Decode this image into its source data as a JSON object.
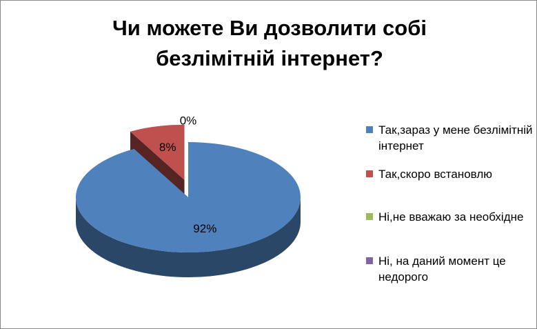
{
  "chart_data": {
    "type": "pie3d",
    "title": "Чи можете Ви дозволити собі безлімітній інтернет?",
    "categories": [
      "Так,зараз у мене безлімітній інтернет",
      "Так,скоро встановлю",
      "Ні,не вважаю за необхідне",
      "Ні, на даний момент це недорого"
    ],
    "values": [
      92,
      8,
      0,
      0
    ],
    "value_labels": [
      "92%",
      "8%",
      "0%",
      null
    ],
    "colors": [
      "#4f81bd",
      "#c0504d",
      "#9bbb59",
      "#8064a2"
    ],
    "legend": "right"
  }
}
